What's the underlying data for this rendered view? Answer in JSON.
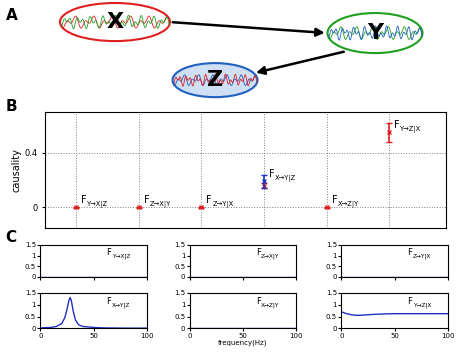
{
  "panel_labels": [
    "A",
    "B",
    "C"
  ],
  "diagram": {
    "nodes": [
      {
        "label": "X",
        "color": "#e02020"
      },
      {
        "label": "Y",
        "color": "#20a020"
      },
      {
        "label": "Z",
        "color": "#2060c0"
      }
    ],
    "edges": [
      [
        "X",
        "Y"
      ],
      [
        "Y",
        "Z"
      ]
    ]
  },
  "chart_data": [
    {
      "type": "errorbar",
      "ylabel": "causality",
      "categories": [
        null,
        null,
        null,
        null,
        null,
        null
      ],
      "annotations": [
        {
          "text": "F",
          "subscript": "Y→X|Z"
        },
        {
          "text": "F",
          "subscript": "Z→X|Y"
        },
        {
          "text": "F",
          "subscript": "Z→Y|X"
        },
        {
          "text": "F",
          "subscript": "X→Y|Z"
        },
        {
          "text": "F",
          "subscript": "X→Z|Y"
        },
        {
          "text": "F",
          "subscript": "Y→Z|X"
        }
      ],
      "series": [
        {
          "color": "#e02020",
          "marker": "x",
          "values": [
            0,
            0,
            0,
            0.16,
            0,
            0.55
          ],
          "errors": [
            0.005,
            0.005,
            0.005,
            0.02,
            0.005,
            0.07
          ]
        },
        {
          "color": "#2030c0",
          "marker": "x",
          "values": [
            null,
            null,
            null,
            0.19,
            null,
            null
          ],
          "errors": [
            null,
            null,
            null,
            0.045,
            null,
            null
          ]
        }
      ],
      "ylim": [
        -0.15,
        0.7
      ],
      "yticks": [
        0,
        0.4
      ],
      "grid": true,
      "tick_labels": "y"
    },
    {
      "type": "line",
      "label": {
        "text": "F",
        "subscript": "Y→X|Z"
      },
      "color": "#2030c0",
      "x": [
        0,
        100
      ],
      "values": [
        0.01,
        0.01
      ],
      "xlim": [
        0,
        100
      ],
      "xticks": [
        0,
        50,
        100
      ],
      "ylim": [
        0,
        1.5
      ],
      "yticks": [
        0,
        0.5,
        1,
        1.5
      ],
      "tick_labels": "y"
    },
    {
      "type": "line",
      "label": {
        "text": "F",
        "subscript": "Z→X|Y"
      },
      "color": "#2030c0",
      "x": [
        0,
        100
      ],
      "values": [
        0.01,
        0.01
      ],
      "xlim": [
        0,
        100
      ],
      "xticks": [
        0,
        50,
        100
      ],
      "ylim": [
        0,
        1.5
      ],
      "yticks": [
        0,
        0.5,
        1,
        1.5
      ],
      "tick_labels": "y"
    },
    {
      "type": "line",
      "label": {
        "text": "F",
        "subscript": "Z→Y|X"
      },
      "color": "#2030c0",
      "x": [
        0,
        100
      ],
      "values": [
        0.01,
        0.01
      ],
      "xlim": [
        0,
        100
      ],
      "xticks": [
        0,
        50,
        100
      ],
      "ylim": [
        0,
        1.5
      ],
      "yticks": [
        0,
        0.5,
        1,
        1.5
      ],
      "tick_labels": "y"
    },
    {
      "type": "line",
      "label": {
        "text": "F",
        "subscript": "X→Y|Z"
      },
      "color": "#2030c0",
      "x": [
        0,
        10,
        15,
        20,
        23,
        25,
        27,
        28,
        29,
        31,
        33,
        36,
        40,
        50,
        60,
        80,
        100
      ],
      "values": [
        0.02,
        0.04,
        0.08,
        0.2,
        0.45,
        0.8,
        1.2,
        1.3,
        1.2,
        0.7,
        0.35,
        0.15,
        0.08,
        0.04,
        0.02,
        0.01,
        0.01
      ],
      "xlim": [
        0,
        100
      ],
      "xticks": [
        0,
        50,
        100
      ],
      "ylim": [
        0,
        1.5
      ],
      "yticks": [
        0,
        0.5,
        1,
        1.5
      ],
      "tick_labels": true
    },
    {
      "type": "line",
      "label": {
        "text": "F",
        "subscript": "X→Z|Y"
      },
      "color": "#2030c0",
      "x": [
        0,
        100
      ],
      "values": [
        0.01,
        0.01
      ],
      "xlabel": "frequency(Hz)",
      "xlim": [
        0,
        100
      ],
      "xticks": [
        0,
        50,
        100
      ],
      "ylim": [
        0,
        1.5
      ],
      "yticks": [
        0,
        0.5,
        1,
        1.5
      ],
      "tick_labels": true
    },
    {
      "type": "line",
      "label": {
        "text": "F",
        "subscript": "Y→Z|X"
      },
      "color": "#2030c0",
      "x": [
        0,
        5,
        10,
        15,
        20,
        30,
        40,
        50,
        60,
        80,
        100
      ],
      "values": [
        0.7,
        0.62,
        0.57,
        0.55,
        0.56,
        0.59,
        0.61,
        0.62,
        0.62,
        0.62,
        0.62
      ],
      "xlim": [
        0,
        100
      ],
      "xticks": [
        0,
        50,
        100
      ],
      "ylim": [
        0,
        1.5
      ],
      "yticks": [
        0,
        0.5,
        1,
        1.5
      ],
      "tick_labels": true
    }
  ]
}
